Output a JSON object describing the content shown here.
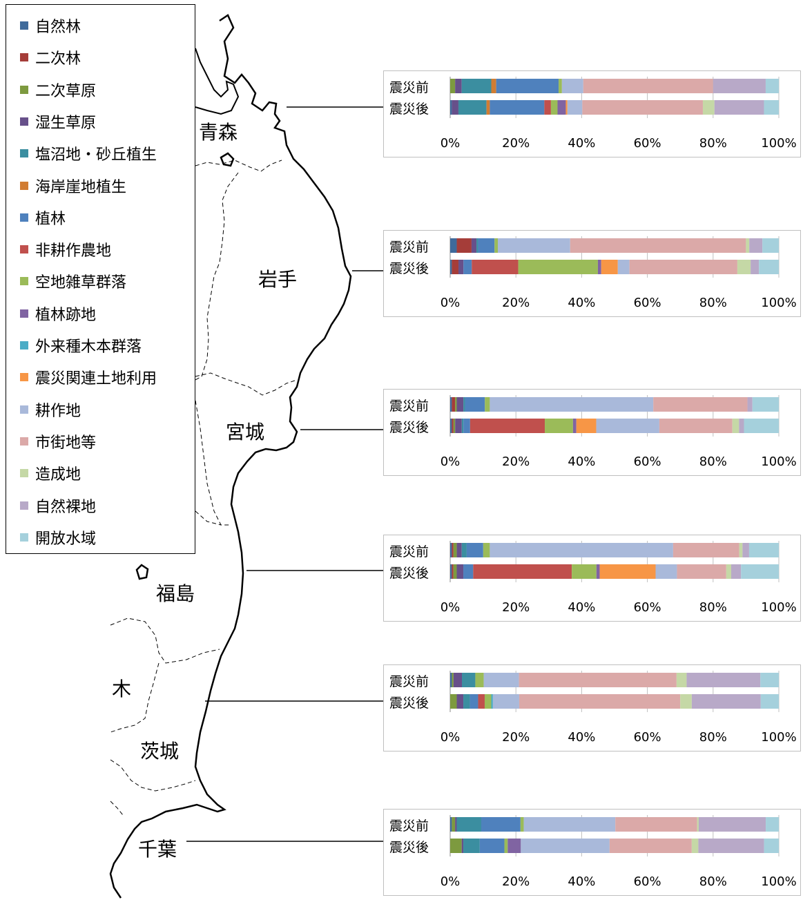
{
  "legend": {
    "items": [
      {
        "label": "自然林",
        "color": "#3f6a9b"
      },
      {
        "label": "二次林",
        "color": "#a53d39"
      },
      {
        "label": "二次草原",
        "color": "#7d9a3f"
      },
      {
        "label": "湿生草原",
        "color": "#67508a"
      },
      {
        "label": "塩沼地・砂丘植生",
        "color": "#3b8ea0"
      },
      {
        "label": "海岸崖地植生",
        "color": "#d17d33"
      },
      {
        "label": "植林",
        "color": "#4f81bd"
      },
      {
        "label": "非耕作農地",
        "color": "#c0504d"
      },
      {
        "label": "空地雑草群落",
        "color": "#9bbb59"
      },
      {
        "label": "植林跡地",
        "color": "#8064a2"
      },
      {
        "label": "外来種木本群落",
        "color": "#4bacc6"
      },
      {
        "label": "震災関連土地利用",
        "color": "#f79646"
      },
      {
        "label": "耕作地",
        "color": "#a9b9da"
      },
      {
        "label": "市街地等",
        "color": "#dba9a8"
      },
      {
        "label": "造成地",
        "color": "#c5d8a6"
      },
      {
        "label": "自然裸地",
        "color": "#b8a9c8"
      },
      {
        "label": "開放水域",
        "color": "#a5d0dc"
      }
    ]
  },
  "map": {
    "labels": [
      "青森",
      "岩手",
      "宮城",
      "福島",
      "木",
      "茨城",
      "千葉"
    ]
  },
  "chart_data": [
    {
      "type": "bar",
      "region": "青森",
      "categories": [
        "震災前",
        "震災後"
      ],
      "xticks": [
        "0%",
        "20%",
        "40%",
        "60%",
        "80%",
        "100%"
      ],
      "xlim": [
        0,
        100
      ],
      "series": [
        {
          "name": "自然林",
          "values": [
            0,
            0.5
          ]
        },
        {
          "name": "二次林",
          "values": [
            0,
            0
          ]
        },
        {
          "name": "二次草原",
          "values": [
            1.5,
            0
          ]
        },
        {
          "name": "湿生草原",
          "values": [
            2,
            2
          ]
        },
        {
          "name": "塩沼地・砂丘植生",
          "values": [
            9,
            8.5
          ]
        },
        {
          "name": "海岸崖地植生",
          "values": [
            1.5,
            1
          ]
        },
        {
          "name": "植林",
          "values": [
            19,
            16.5
          ]
        },
        {
          "name": "非耕作農地",
          "values": [
            0,
            2
          ]
        },
        {
          "name": "空地雑草群落",
          "values": [
            1,
            2
          ]
        },
        {
          "name": "植林跡地",
          "values": [
            0,
            2.5
          ]
        },
        {
          "name": "外来種木本群落",
          "values": [
            0,
            0
          ]
        },
        {
          "name": "震災関連土地利用",
          "values": [
            0,
            0.5
          ]
        },
        {
          "name": "耕作地",
          "values": [
            6.5,
            4.5
          ]
        },
        {
          "name": "市街地等",
          "values": [
            39.5,
            36.5
          ]
        },
        {
          "name": "造成地",
          "values": [
            0,
            3.5
          ]
        },
        {
          "name": "自然裸地",
          "values": [
            16,
            15
          ]
        },
        {
          "name": "開放水域",
          "values": [
            4,
            4.5
          ]
        }
      ]
    },
    {
      "type": "bar",
      "region": "岩手",
      "categories": [
        "震災前",
        "震災後"
      ],
      "xticks": [
        "0%",
        "20%",
        "40%",
        "60%",
        "80%",
        "100%"
      ],
      "xlim": [
        0,
        100
      ],
      "series": [
        {
          "name": "自然林",
          "values": [
            2,
            0.5
          ]
        },
        {
          "name": "二次林",
          "values": [
            4.5,
            2
          ]
        },
        {
          "name": "二次草原",
          "values": [
            0,
            0
          ]
        },
        {
          "name": "湿生草原",
          "values": [
            1.5,
            1.5
          ]
        },
        {
          "name": "塩沼地・砂丘植生",
          "values": [
            0.5,
            0
          ]
        },
        {
          "name": "海岸崖地植生",
          "values": [
            0,
            0
          ]
        },
        {
          "name": "植林",
          "values": [
            5,
            2.5
          ]
        },
        {
          "name": "非耕作農地",
          "values": [
            0,
            14
          ]
        },
        {
          "name": "空地雑草群落",
          "values": [
            1,
            24
          ]
        },
        {
          "name": "植林跡地",
          "values": [
            0,
            1
          ]
        },
        {
          "name": "外来種木本群落",
          "values": [
            0,
            0
          ]
        },
        {
          "name": "震災関連土地利用",
          "values": [
            0,
            5
          ]
        },
        {
          "name": "耕作地",
          "values": [
            22,
            3.5
          ]
        },
        {
          "name": "市街地等",
          "values": [
            53.5,
            32.5
          ]
        },
        {
          "name": "造成地",
          "values": [
            1,
            4
          ]
        },
        {
          "name": "自然裸地",
          "values": [
            4,
            2.5
          ]
        },
        {
          "name": "開放水域",
          "values": [
            5,
            6
          ]
        }
      ]
    },
    {
      "type": "bar",
      "region": "宮城",
      "categories": [
        "震災前",
        "震災後"
      ],
      "xticks": [
        "0%",
        "20%",
        "40%",
        "60%",
        "80%",
        "100%"
      ],
      "xlim": [
        0,
        100
      ],
      "series": [
        {
          "name": "自然林",
          "values": [
            0.5,
            0.5
          ]
        },
        {
          "name": "二次林",
          "values": [
            1,
            0.5
          ]
        },
        {
          "name": "二次草原",
          "values": [
            0.5,
            0.5
          ]
        },
        {
          "name": "湿生草原",
          "values": [
            2,
            2
          ]
        },
        {
          "name": "塩沼地・砂丘植生",
          "values": [
            0.5,
            0.5
          ]
        },
        {
          "name": "海岸崖地植生",
          "values": [
            0,
            0
          ]
        },
        {
          "name": "植林",
          "values": [
            6,
            2
          ]
        },
        {
          "name": "非耕作農地",
          "values": [
            0,
            22.5
          ]
        },
        {
          "name": "空地雑草群落",
          "values": [
            1.5,
            8.5
          ]
        },
        {
          "name": "植林跡地",
          "values": [
            0,
            1
          ]
        },
        {
          "name": "外来種木本群落",
          "values": [
            0,
            0
          ]
        },
        {
          "name": "震災関連土地利用",
          "values": [
            0,
            6
          ]
        },
        {
          "name": "耕作地",
          "values": [
            49.5,
            19
          ]
        },
        {
          "name": "市街地等",
          "values": [
            28.5,
            22
          ]
        },
        {
          "name": "造成地",
          "values": [
            0,
            2
          ]
        },
        {
          "name": "自然裸地",
          "values": [
            1.5,
            1.5
          ]
        },
        {
          "name": "開放水域",
          "values": [
            8,
            10.5
          ]
        }
      ]
    },
    {
      "type": "bar",
      "region": "福島",
      "categories": [
        "震災前",
        "震災後"
      ],
      "xticks": [
        "0%",
        "20%",
        "40%",
        "60%",
        "80%",
        "100%"
      ],
      "xlim": [
        0,
        100
      ],
      "series": [
        {
          "name": "自然林",
          "values": [
            0.5,
            0.5
          ]
        },
        {
          "name": "二次林",
          "values": [
            0.5,
            0.5
          ]
        },
        {
          "name": "二次草原",
          "values": [
            1,
            1
          ]
        },
        {
          "name": "湿生草原",
          "values": [
            1.5,
            2
          ]
        },
        {
          "name": "塩沼地・砂丘植生",
          "values": [
            1.5,
            0
          ]
        },
        {
          "name": "海岸崖地植生",
          "values": [
            0,
            0
          ]
        },
        {
          "name": "植林",
          "values": [
            5,
            3
          ]
        },
        {
          "name": "非耕作農地",
          "values": [
            0,
            30
          ]
        },
        {
          "name": "空地雑草群落",
          "values": [
            2,
            7.5
          ]
        },
        {
          "name": "植林跡地",
          "values": [
            0,
            1
          ]
        },
        {
          "name": "外来種木本群落",
          "values": [
            0,
            0
          ]
        },
        {
          "name": "震災関連土地利用",
          "values": [
            0,
            17
          ]
        },
        {
          "name": "耕作地",
          "values": [
            55.5,
            6.5
          ]
        },
        {
          "name": "市街地等",
          "values": [
            20,
            15
          ]
        },
        {
          "name": "造成地",
          "values": [
            1,
            1.5
          ]
        },
        {
          "name": "自然裸地",
          "values": [
            2,
            3
          ]
        },
        {
          "name": "開放水域",
          "values": [
            9,
            11.5
          ]
        }
      ]
    },
    {
      "type": "bar",
      "region": "茨城",
      "categories": [
        "震災前",
        "震災後"
      ],
      "xticks": [
        "0%",
        "20%",
        "40%",
        "60%",
        "80%",
        "100%"
      ],
      "xlim": [
        0,
        100
      ],
      "series": [
        {
          "name": "自然林",
          "values": [
            0.5,
            0
          ]
        },
        {
          "name": "二次林",
          "values": [
            0,
            0
          ]
        },
        {
          "name": "二次草原",
          "values": [
            0.5,
            2
          ]
        },
        {
          "name": "湿生草原",
          "values": [
            2.5,
            2
          ]
        },
        {
          "name": "塩沼地・砂丘植生",
          "values": [
            4,
            2
          ]
        },
        {
          "name": "海岸崖地植生",
          "values": [
            0,
            0
          ]
        },
        {
          "name": "植林",
          "values": [
            0,
            2.5
          ]
        },
        {
          "name": "非耕作農地",
          "values": [
            0,
            2
          ]
        },
        {
          "name": "空地雑草群落",
          "values": [
            2.5,
            2
          ]
        },
        {
          "name": "植林跡地",
          "values": [
            0,
            0
          ]
        },
        {
          "name": "外来種木本群落",
          "values": [
            0,
            0.5
          ]
        },
        {
          "name": "震災関連土地利用",
          "values": [
            0,
            0
          ]
        },
        {
          "name": "耕作地",
          "values": [
            10.5,
            8
          ]
        },
        {
          "name": "市街地等",
          "values": [
            47,
            49
          ]
        },
        {
          "name": "造成地",
          "values": [
            3,
            3.5
          ]
        },
        {
          "name": "自然裸地",
          "values": [
            22,
            21
          ]
        },
        {
          "name": "開放水域",
          "values": [
            5.5,
            5.5
          ]
        }
      ]
    },
    {
      "type": "bar",
      "region": "千葉",
      "categories": [
        "震災前",
        "震災後"
      ],
      "xticks": [
        "0%",
        "20%",
        "40%",
        "60%",
        "80%",
        "100%"
      ],
      "xlim": [
        0,
        100
      ],
      "series": [
        {
          "name": "自然林",
          "values": [
            0.5,
            0
          ]
        },
        {
          "name": "二次林",
          "values": [
            0,
            0
          ]
        },
        {
          "name": "二次草原",
          "values": [
            1,
            3.5
          ]
        },
        {
          "name": "湿生草原",
          "values": [
            0.5,
            0.5
          ]
        },
        {
          "name": "塩沼地・砂丘植生",
          "values": [
            7.5,
            5
          ]
        },
        {
          "name": "海岸崖地植生",
          "values": [
            0,
            0
          ]
        },
        {
          "name": "植林",
          "values": [
            12,
            7.5
          ]
        },
        {
          "name": "非耕作農地",
          "values": [
            0,
            0
          ]
        },
        {
          "name": "空地雑草群落",
          "values": [
            1,
            1
          ]
        },
        {
          "name": "植林跡地",
          "values": [
            0,
            4
          ]
        },
        {
          "name": "外来種木本群落",
          "values": [
            0,
            0
          ]
        },
        {
          "name": "震災関連土地利用",
          "values": [
            0,
            0
          ]
        },
        {
          "name": "耕作地",
          "values": [
            28,
            27
          ]
        },
        {
          "name": "市街地等",
          "values": [
            25,
            25
          ]
        },
        {
          "name": "造成地",
          "values": [
            0.5,
            2
          ]
        },
        {
          "name": "自然裸地",
          "values": [
            20.5,
            20
          ]
        },
        {
          "name": "開放水域",
          "values": [
            4,
            4.5
          ]
        }
      ]
    }
  ]
}
